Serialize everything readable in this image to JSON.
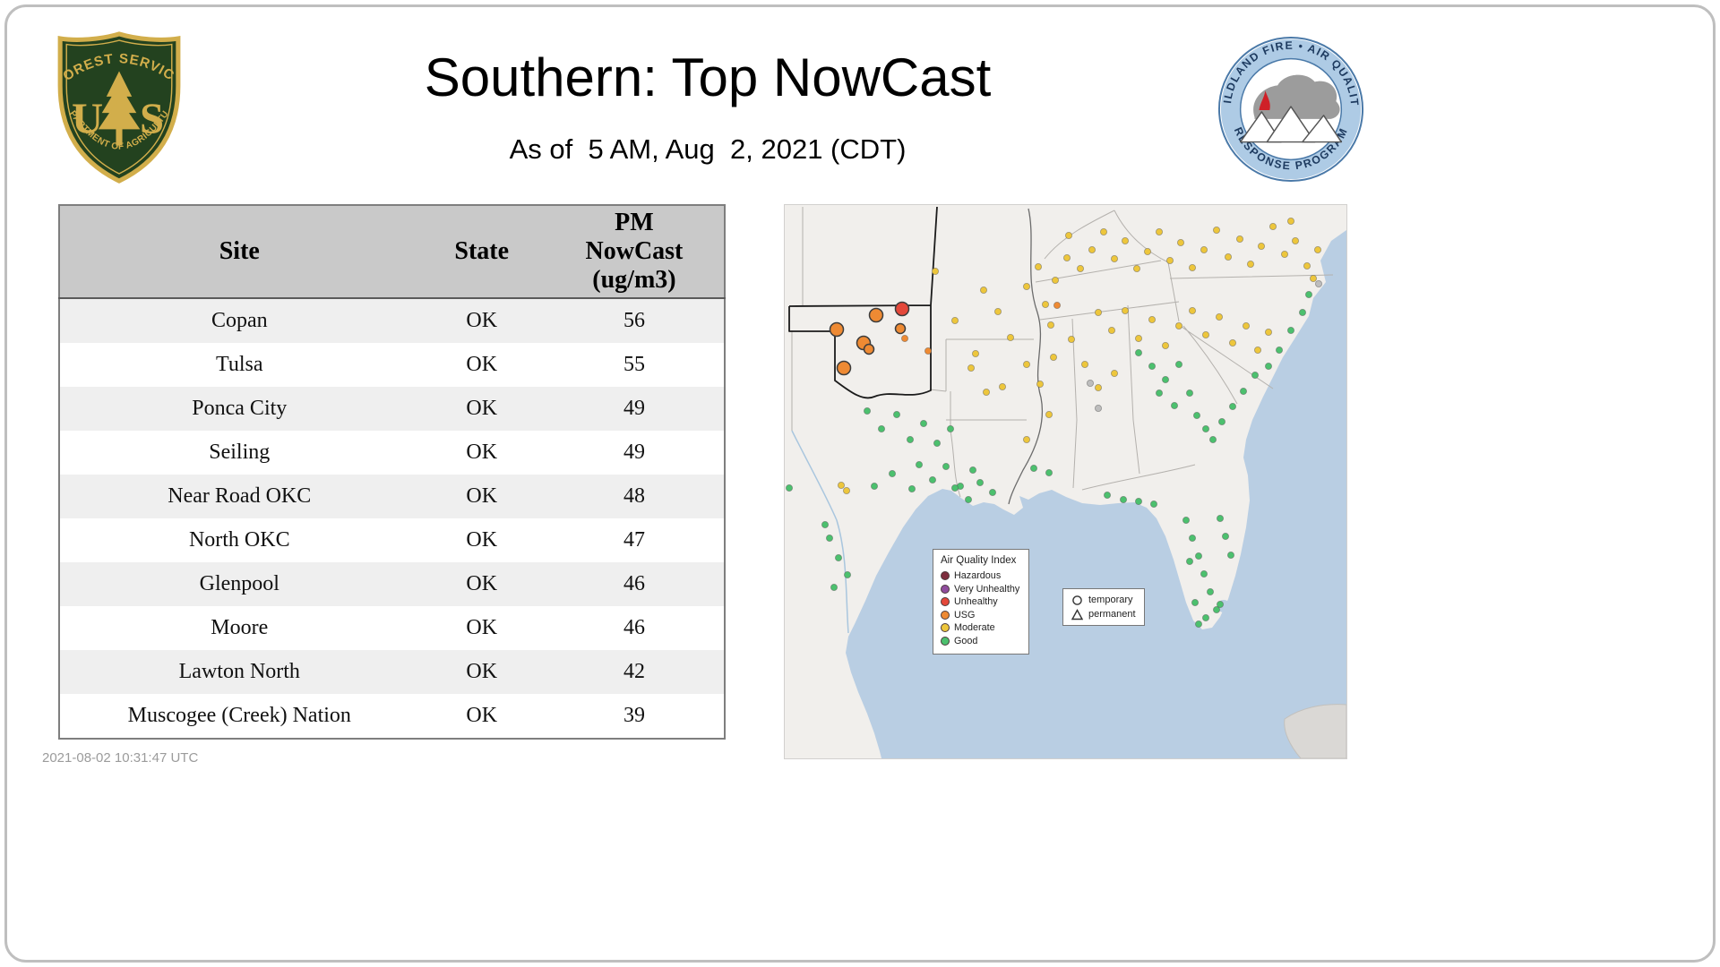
{
  "header": {
    "title": "Southern: Top NowCast",
    "subtitle": "As of  5 AM, Aug  2, 2021 (CDT)"
  },
  "usfs_logo": {
    "arc_top": "FOREST SERVICE",
    "letter_u": "U",
    "letter_s": "S",
    "arc_bottom": "DEPARTMENT OF AGRICULTURE"
  },
  "wfaqrp_logo": {
    "arc_top": "WILDLAND FIRE • AIR QUALITY",
    "arc_bottom": "RESPONSE PROGRAM"
  },
  "table": {
    "headers": [
      "Site",
      "State",
      "PM\nNowCast\n(ug/m3)"
    ],
    "rows": [
      {
        "site": "Copan",
        "state": "OK",
        "value": "56"
      },
      {
        "site": "Tulsa",
        "state": "OK",
        "value": "55"
      },
      {
        "site": "Ponca City",
        "state": "OK",
        "value": "49"
      },
      {
        "site": "Seiling",
        "state": "OK",
        "value": "49"
      },
      {
        "site": "Near Road OKC",
        "state": "OK",
        "value": "48"
      },
      {
        "site": "North OKC",
        "state": "OK",
        "value": "47"
      },
      {
        "site": "Glenpool",
        "state": "OK",
        "value": "46"
      },
      {
        "site": "Moore",
        "state": "OK",
        "value": "46"
      },
      {
        "site": "Lawton North",
        "state": "OK",
        "value": "42"
      },
      {
        "site": "Muscogee (Creek) Nation",
        "state": "OK",
        "value": "39"
      }
    ]
  },
  "map": {
    "palette": {
      "hazardous": "#7e2d3e",
      "very_unhealthy": "#8f4d9e",
      "unhealthy": "#e4483a",
      "usg": "#ee8a33",
      "moderate": "#edc63c",
      "good": "#4cc06e",
      "gray": "#bdbdbd"
    },
    "colors": {
      "water": "#b9cee3",
      "land": "#f1efec",
      "state_line": "#b4b1ad",
      "region_line": "#1b1b1b"
    },
    "aqi_legend": {
      "title": "Air Quality Index",
      "items": [
        {
          "label": "Hazardous",
          "color_key": "hazardous"
        },
        {
          "label": "Very Unhealthy",
          "color_key": "very_unhealthy"
        },
        {
          "label": "Unhealthy",
          "color_key": "unhealthy"
        },
        {
          "label": "USG",
          "color_key": "usg"
        },
        {
          "label": "Moderate",
          "color_key": "moderate"
        },
        {
          "label": "Good",
          "color_key": "good"
        }
      ]
    },
    "marker_legend": {
      "items": [
        {
          "symbol": "circle",
          "label": "temporary"
        },
        {
          "symbol": "triangle",
          "label": "permanent"
        }
      ]
    },
    "dots": [
      [
        58,
        139,
        "usg",
        3
      ],
      [
        102,
        123,
        "usg",
        3
      ],
      [
        131,
        116,
        "unhealthy",
        3
      ],
      [
        129,
        138,
        "usg",
        2
      ],
      [
        134,
        149,
        "usg",
        1
      ],
      [
        88,
        154,
        "usg",
        3
      ],
      [
        94,
        161,
        "usg",
        2
      ],
      [
        66,
        182,
        "usg",
        3
      ],
      [
        160,
        163,
        "usg",
        1
      ],
      [
        304,
        112,
        "usg",
        1
      ],
      [
        168,
        74,
        "moderate",
        1
      ],
      [
        213,
        166,
        "moderate",
        1
      ],
      [
        243,
        203,
        "moderate",
        1
      ],
      [
        270,
        91,
        "moderate",
        1
      ],
      [
        283,
        69,
        "moderate",
        1
      ],
      [
        291,
        111,
        "moderate",
        1
      ],
      [
        302,
        84,
        "moderate",
        1
      ],
      [
        315,
        59,
        "moderate",
        1
      ],
      [
        297,
        134,
        "moderate",
        1
      ],
      [
        317,
        34,
        "moderate",
        1
      ],
      [
        330,
        71,
        "moderate",
        1
      ],
      [
        343,
        50,
        "moderate",
        1
      ],
      [
        356,
        30,
        "moderate",
        1
      ],
      [
        368,
        60,
        "moderate",
        1
      ],
      [
        380,
        40,
        "moderate",
        1
      ],
      [
        393,
        71,
        "moderate",
        1
      ],
      [
        405,
        52,
        "moderate",
        1
      ],
      [
        418,
        30,
        "moderate",
        1
      ],
      [
        430,
        62,
        "moderate",
        1
      ],
      [
        442,
        42,
        "moderate",
        1
      ],
      [
        455,
        70,
        "moderate",
        1
      ],
      [
        468,
        50,
        "moderate",
        1
      ],
      [
        482,
        28,
        "moderate",
        1
      ],
      [
        495,
        58,
        "moderate",
        1
      ],
      [
        508,
        38,
        "moderate",
        1
      ],
      [
        520,
        66,
        "moderate",
        1
      ],
      [
        532,
        46,
        "moderate",
        1
      ],
      [
        545,
        24,
        "moderate",
        1
      ],
      [
        558,
        55,
        "moderate",
        1
      ],
      [
        570,
        40,
        "moderate",
        1
      ],
      [
        583,
        68,
        "moderate",
        1
      ],
      [
        595,
        50,
        "moderate",
        1
      ],
      [
        565,
        18,
        "moderate",
        1
      ],
      [
        590,
        82,
        "moderate",
        1
      ],
      [
        350,
        120,
        "moderate",
        1
      ],
      [
        365,
        140,
        "moderate",
        1
      ],
      [
        380,
        118,
        "moderate",
        1
      ],
      [
        395,
        149,
        "moderate",
        1
      ],
      [
        410,
        128,
        "moderate",
        1
      ],
      [
        425,
        157,
        "moderate",
        1
      ],
      [
        440,
        135,
        "moderate",
        1
      ],
      [
        455,
        118,
        "moderate",
        1
      ],
      [
        470,
        145,
        "moderate",
        1
      ],
      [
        485,
        125,
        "moderate",
        1
      ],
      [
        500,
        154,
        "moderate",
        1
      ],
      [
        515,
        135,
        "moderate",
        1
      ],
      [
        528,
        162,
        "moderate",
        1
      ],
      [
        540,
        142,
        "moderate",
        1
      ],
      [
        320,
        150,
        "moderate",
        1
      ],
      [
        335,
        178,
        "moderate",
        1
      ],
      [
        350,
        204,
        "moderate",
        1
      ],
      [
        368,
        188,
        "moderate",
        1
      ],
      [
        300,
        170,
        "moderate",
        1
      ],
      [
        285,
        200,
        "moderate",
        1
      ],
      [
        270,
        178,
        "moderate",
        1
      ],
      [
        208,
        182,
        "moderate",
        1
      ],
      [
        225,
        209,
        "moderate",
        1
      ],
      [
        295,
        234,
        "moderate",
        1
      ],
      [
        270,
        262,
        "moderate",
        1
      ],
      [
        63,
        313,
        "moderate",
        1
      ],
      [
        69,
        319,
        "moderate",
        1
      ],
      [
        238,
        119,
        "moderate",
        1
      ],
      [
        222,
        95,
        "moderate",
        1
      ],
      [
        190,
        129,
        "moderate",
        1
      ],
      [
        252,
        148,
        "moderate",
        1
      ],
      [
        92,
        230,
        "good",
        1
      ],
      [
        108,
        250,
        "good",
        1
      ],
      [
        125,
        234,
        "good",
        1
      ],
      [
        140,
        262,
        "good",
        1
      ],
      [
        155,
        244,
        "good",
        1
      ],
      [
        170,
        266,
        "good",
        1
      ],
      [
        185,
        250,
        "good",
        1
      ],
      [
        150,
        290,
        "good",
        1
      ],
      [
        165,
        307,
        "good",
        1
      ],
      [
        180,
        292,
        "good",
        1
      ],
      [
        196,
        314,
        "good",
        1
      ],
      [
        210,
        296,
        "good",
        1
      ],
      [
        142,
        317,
        "good",
        1
      ],
      [
        120,
        300,
        "good",
        1
      ],
      [
        100,
        314,
        "good",
        1
      ],
      [
        5,
        316,
        "good",
        1
      ],
      [
        45,
        357,
        "good",
        1
      ],
      [
        50,
        372,
        "good",
        1
      ],
      [
        60,
        394,
        "good",
        1
      ],
      [
        70,
        413,
        "good",
        1
      ],
      [
        55,
        427,
        "good",
        1
      ],
      [
        190,
        316,
        "good",
        1
      ],
      [
        205,
        329,
        "good",
        1
      ],
      [
        218,
        310,
        "good",
        1
      ],
      [
        232,
        321,
        "good",
        1
      ],
      [
        278,
        294,
        "good",
        1
      ],
      [
        295,
        299,
        "good",
        1
      ],
      [
        360,
        324,
        "good",
        1
      ],
      [
        378,
        329,
        "good",
        1
      ],
      [
        395,
        331,
        "good",
        1
      ],
      [
        412,
        334,
        "good",
        1
      ],
      [
        448,
        352,
        "good",
        1
      ],
      [
        455,
        372,
        "good",
        1
      ],
      [
        462,
        392,
        "good",
        1
      ],
      [
        468,
        412,
        "good",
        1
      ],
      [
        475,
        432,
        "good",
        1
      ],
      [
        482,
        452,
        "good",
        1
      ],
      [
        470,
        461,
        "good",
        1
      ],
      [
        458,
        444,
        "good",
        1
      ],
      [
        462,
        468,
        "good",
        1
      ],
      [
        486,
        446,
        "good",
        1
      ],
      [
        492,
        370,
        "good",
        1
      ],
      [
        498,
        391,
        "good",
        1
      ],
      [
        486,
        350,
        "good",
        1
      ],
      [
        452,
        398,
        "good",
        1
      ],
      [
        395,
        165,
        "good",
        1
      ],
      [
        410,
        180,
        "good",
        1
      ],
      [
        425,
        195,
        "good",
        1
      ],
      [
        440,
        178,
        "good",
        1
      ],
      [
        418,
        210,
        "good",
        1
      ],
      [
        435,
        224,
        "good",
        1
      ],
      [
        452,
        210,
        "good",
        1
      ],
      [
        460,
        235,
        "good",
        1
      ],
      [
        470,
        250,
        "good",
        1
      ],
      [
        478,
        262,
        "good",
        1
      ],
      [
        488,
        242,
        "good",
        1
      ],
      [
        500,
        225,
        "good",
        1
      ],
      [
        512,
        208,
        "good",
        1
      ],
      [
        525,
        190,
        "good",
        1
      ],
      [
        585,
        100,
        "good",
        1
      ],
      [
        578,
        120,
        "good",
        1
      ],
      [
        565,
        140,
        "good",
        1
      ],
      [
        552,
        162,
        "good",
        1
      ],
      [
        540,
        180,
        "good",
        1
      ],
      [
        341,
        199,
        "gray",
        1
      ],
      [
        350,
        227,
        "gray",
        1
      ],
      [
        596,
        88,
        "gray",
        1
      ]
    ]
  },
  "footer": {
    "timestamp": "2021-08-02 10:31:47 UTC"
  }
}
